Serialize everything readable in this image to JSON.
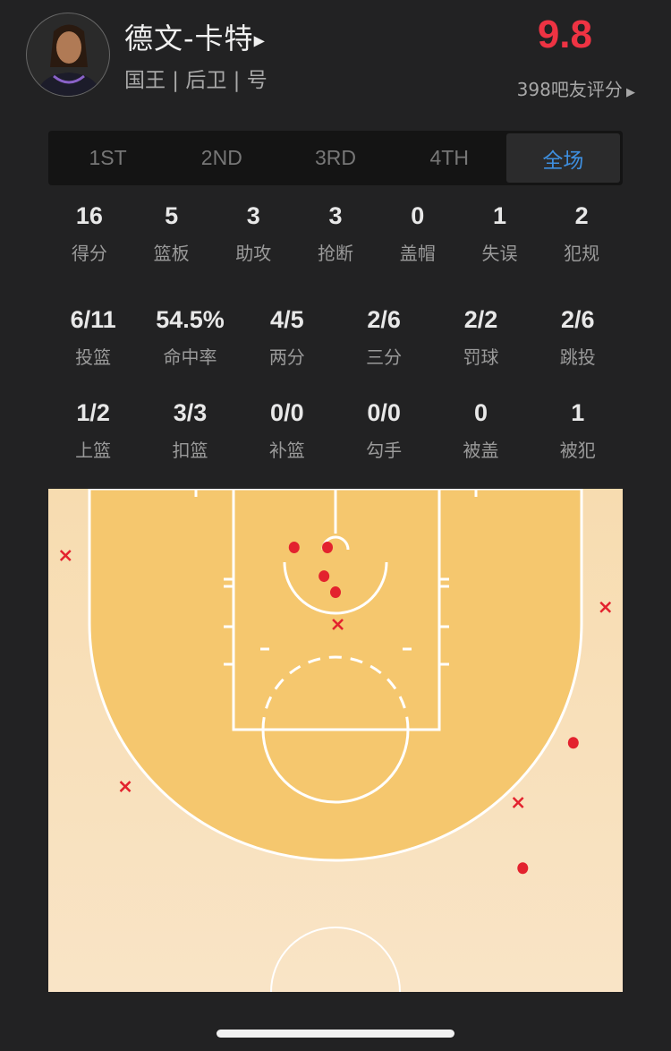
{
  "player": {
    "name": "德文-卡特",
    "info": "国王 | 后卫 | 号",
    "score": "9.8",
    "rating_text": "398吧友评分",
    "score_color": "#ee3343"
  },
  "tabs": [
    {
      "label": "1ST",
      "active": false
    },
    {
      "label": "2ND",
      "active": false
    },
    {
      "label": "3RD",
      "active": false
    },
    {
      "label": "4TH",
      "active": false
    },
    {
      "label": "全场",
      "active": true
    }
  ],
  "stats_row1": [
    {
      "value": "16",
      "label": "得分"
    },
    {
      "value": "5",
      "label": "篮板"
    },
    {
      "value": "3",
      "label": "助攻"
    },
    {
      "value": "3",
      "label": "抢断"
    },
    {
      "value": "0",
      "label": "盖帽"
    },
    {
      "value": "1",
      "label": "失误"
    },
    {
      "value": "2",
      "label": "犯规"
    }
  ],
  "stats_row2": [
    {
      "value": "6/11",
      "label": "投篮"
    },
    {
      "value": "54.5%",
      "label": "命中率"
    },
    {
      "value": "4/5",
      "label": "两分"
    },
    {
      "value": "2/6",
      "label": "三分"
    },
    {
      "value": "2/2",
      "label": "罚球"
    },
    {
      "value": "2/6",
      "label": "跳投"
    }
  ],
  "stats_row3": [
    {
      "value": "1/2",
      "label": "上篮"
    },
    {
      "value": "3/3",
      "label": "扣篮"
    },
    {
      "value": "0/0",
      "label": "补篮"
    },
    {
      "value": "0/0",
      "label": "勾手"
    },
    {
      "value": "0",
      "label": "被盖"
    },
    {
      "value": "1",
      "label": "被犯"
    }
  ],
  "shot_chart": {
    "units": "feet (x from basket center, y from baseline)",
    "made_color": "#e3222e",
    "shots": [
      {
        "x": -3.6,
        "y": 5.1,
        "made": true
      },
      {
        "x": -0.7,
        "y": 5.1,
        "made": true
      },
      {
        "x": -1.0,
        "y": 7.6,
        "made": true
      },
      {
        "x": 0.0,
        "y": 9.0,
        "made": true
      },
      {
        "x": 20.7,
        "y": 22.1,
        "made": true
      },
      {
        "x": 16.3,
        "y": 33.0,
        "made": true
      },
      {
        "x": -23.5,
        "y": 5.8,
        "made": false
      },
      {
        "x": 0.2,
        "y": 11.8,
        "made": false
      },
      {
        "x": 23.5,
        "y": 10.3,
        "made": false
      },
      {
        "x": -18.3,
        "y": 25.9,
        "made": false
      },
      {
        "x": 15.9,
        "y": 27.3,
        "made": false
      }
    ]
  }
}
